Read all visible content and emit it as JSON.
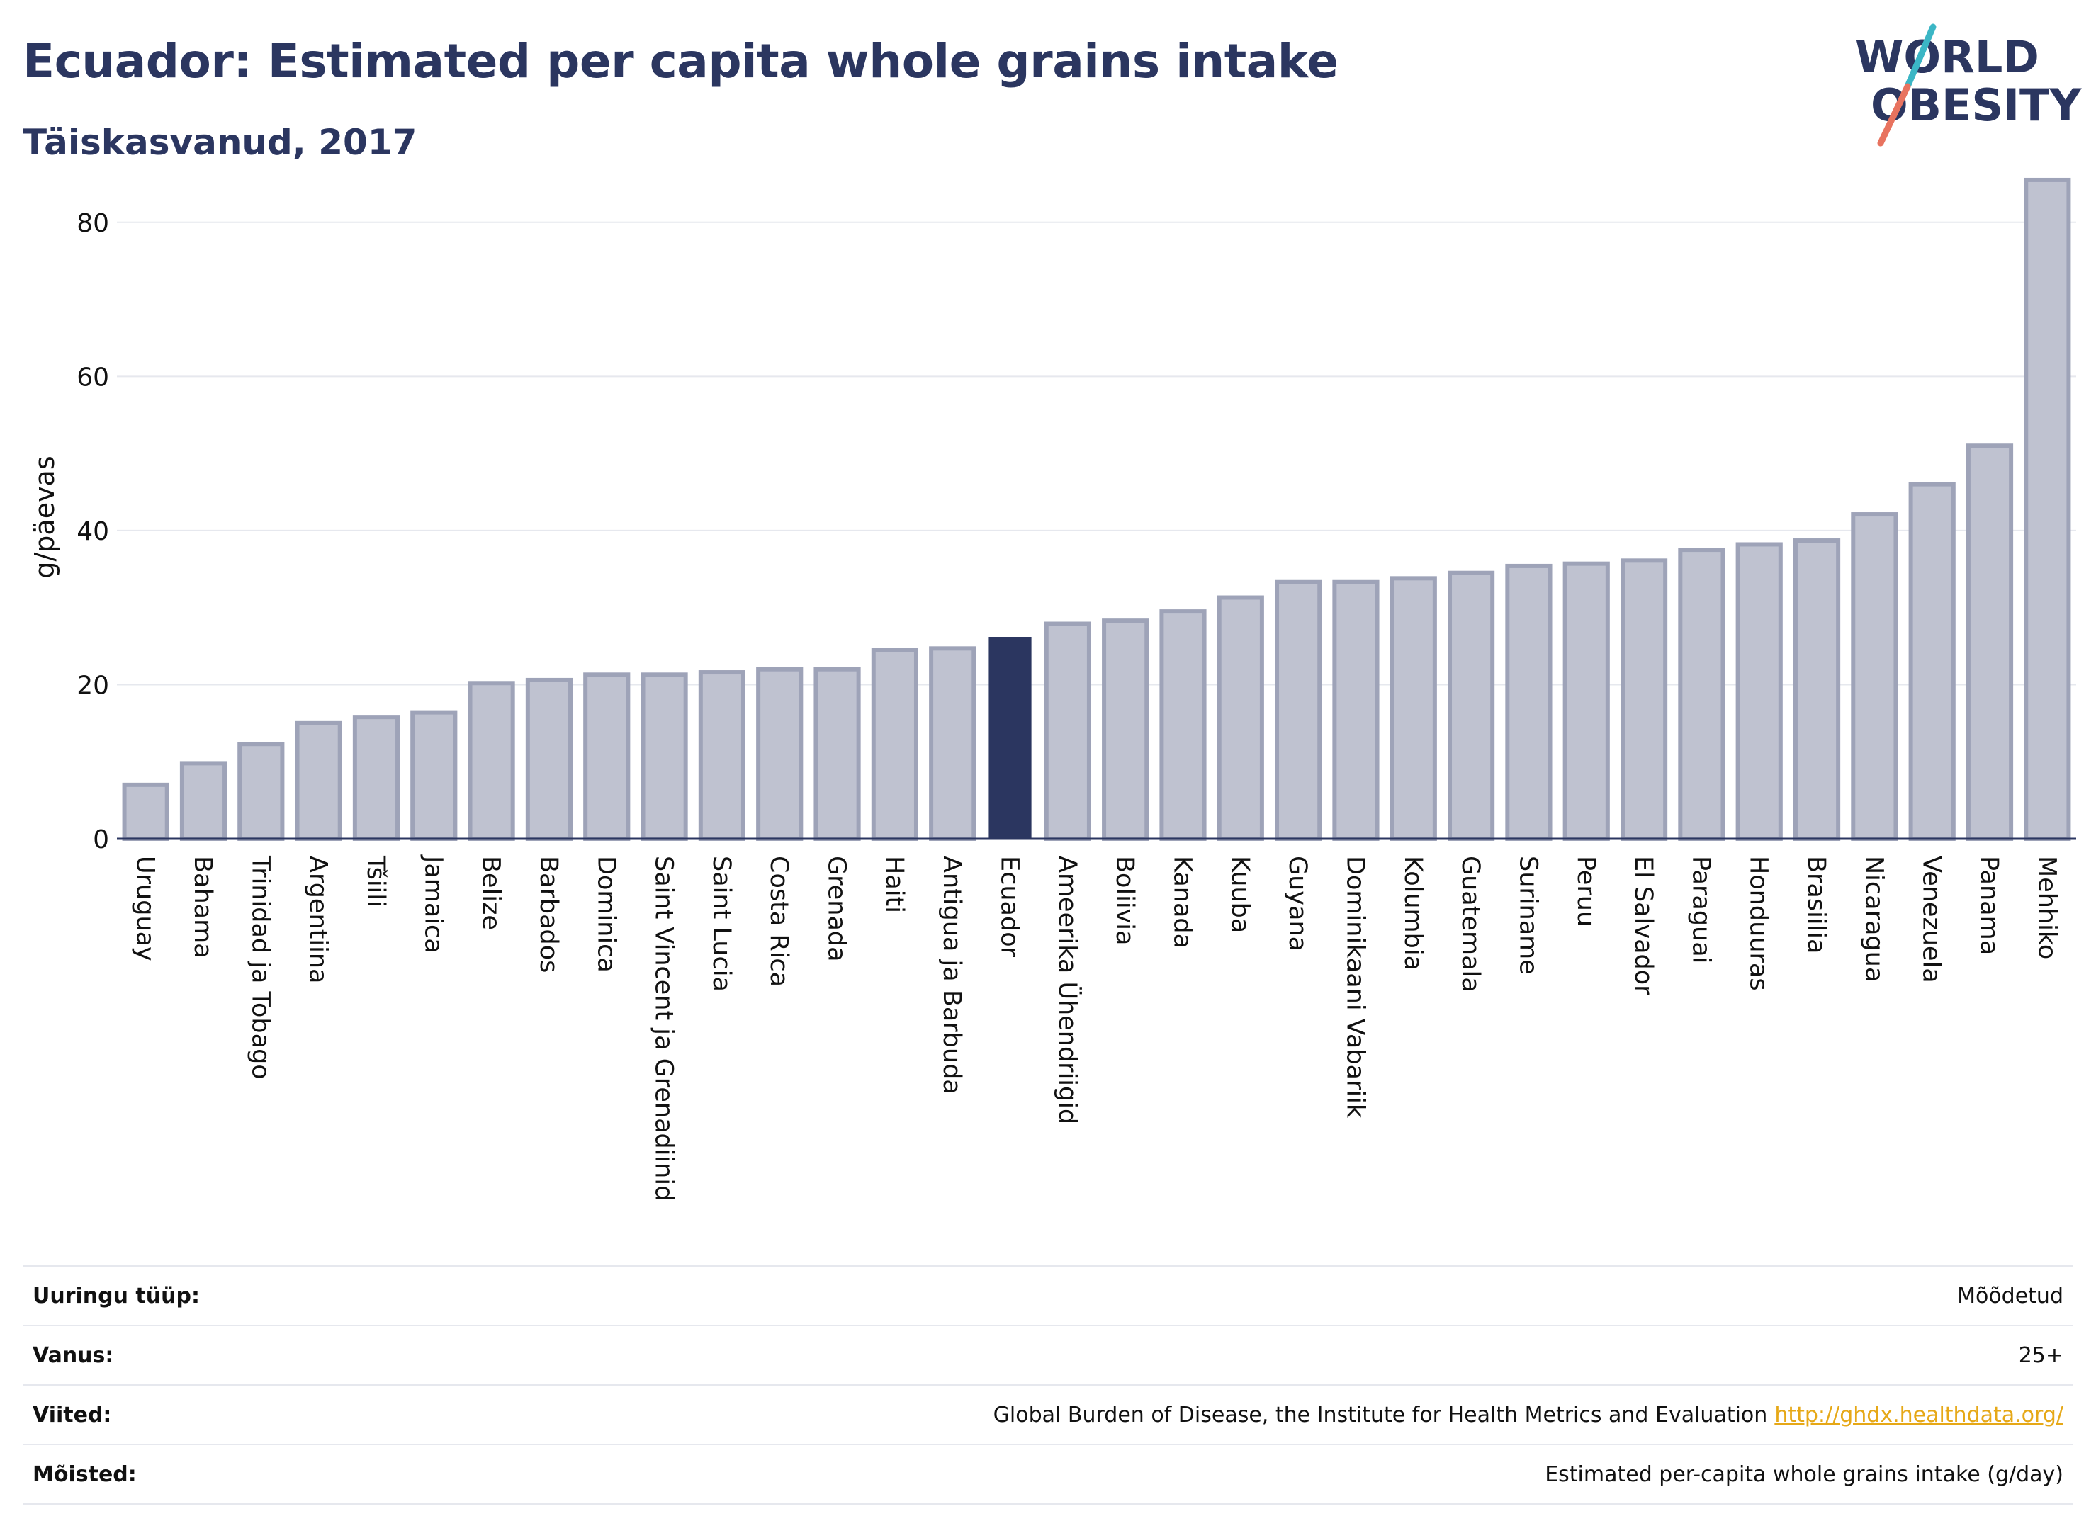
{
  "header": {
    "title": "Ecuador: Estimated per capita whole grains intake",
    "subtitle": "Täiskasvanud, 2017"
  },
  "logo": {
    "line1": "WORLD",
    "line2": "OBESITY",
    "colors": {
      "text": "#2b3660",
      "slash_teal": "#3bb6c5",
      "slash_coral": "#e8735f"
    }
  },
  "colors": {
    "bar_fill": "#bfc2d0",
    "bar_stroke": "#9ea3b8",
    "highlight": "#2b3660",
    "grid": "#e6e8ee",
    "axis": "#2b3660",
    "text": "#111111"
  },
  "chart_data": {
    "type": "bar",
    "ylabel": "g/päevas",
    "ylim": [
      0,
      90
    ],
    "yticks": [
      0,
      20,
      40,
      60,
      80
    ],
    "grid": true,
    "highlight": "Ecuador",
    "categories": [
      "Uruguay",
      "Bahama",
      "Trinidad ja Tobago",
      "Argentiina",
      "Tšiili",
      "Jamaica",
      "Belize",
      "Barbados",
      "Dominica",
      "Saint Vincent ja Grenadiinid",
      "Saint Lucia",
      "Costa Rica",
      "Grenada",
      "Haiti",
      "Antigua ja Barbuda",
      "Ecuador",
      "Ameerika Ühendriigid",
      "Boliivia",
      "Kanada",
      "Kuuba",
      "Guyana",
      "Dominikaani Vabariik",
      "Kolumbia",
      "Guatemala",
      "Suriname",
      "Peruu",
      "El Salvador",
      "Paraguai",
      "Honduuras",
      "Brasiilia",
      "Nicaragua",
      "Venezuela",
      "Panama",
      "Mehhiko"
    ],
    "values": [
      7.0,
      9.8,
      12.3,
      15.0,
      15.8,
      16.4,
      20.2,
      20.6,
      21.3,
      21.3,
      21.6,
      22.0,
      22.0,
      24.5,
      24.7,
      26.2,
      27.9,
      28.3,
      29.5,
      31.3,
      33.3,
      33.3,
      33.8,
      34.5,
      35.4,
      35.7,
      36.1,
      37.5,
      38.2,
      38.7,
      42.1,
      46.0,
      51.0,
      85.5
    ]
  },
  "meta": [
    {
      "label": "Uuringu tüüp:",
      "value": "Mõõdetud"
    },
    {
      "label": "Vanus:",
      "value": "25+"
    },
    {
      "label": "Viited:",
      "value": "Global Burden of Disease, the Institute for Health Metrics and Evaluation",
      "link": "http://ghdx.healthdata.org/"
    },
    {
      "label": "Mõisted:",
      "value": "Estimated per-capita whole grains intake (g/day)"
    }
  ]
}
